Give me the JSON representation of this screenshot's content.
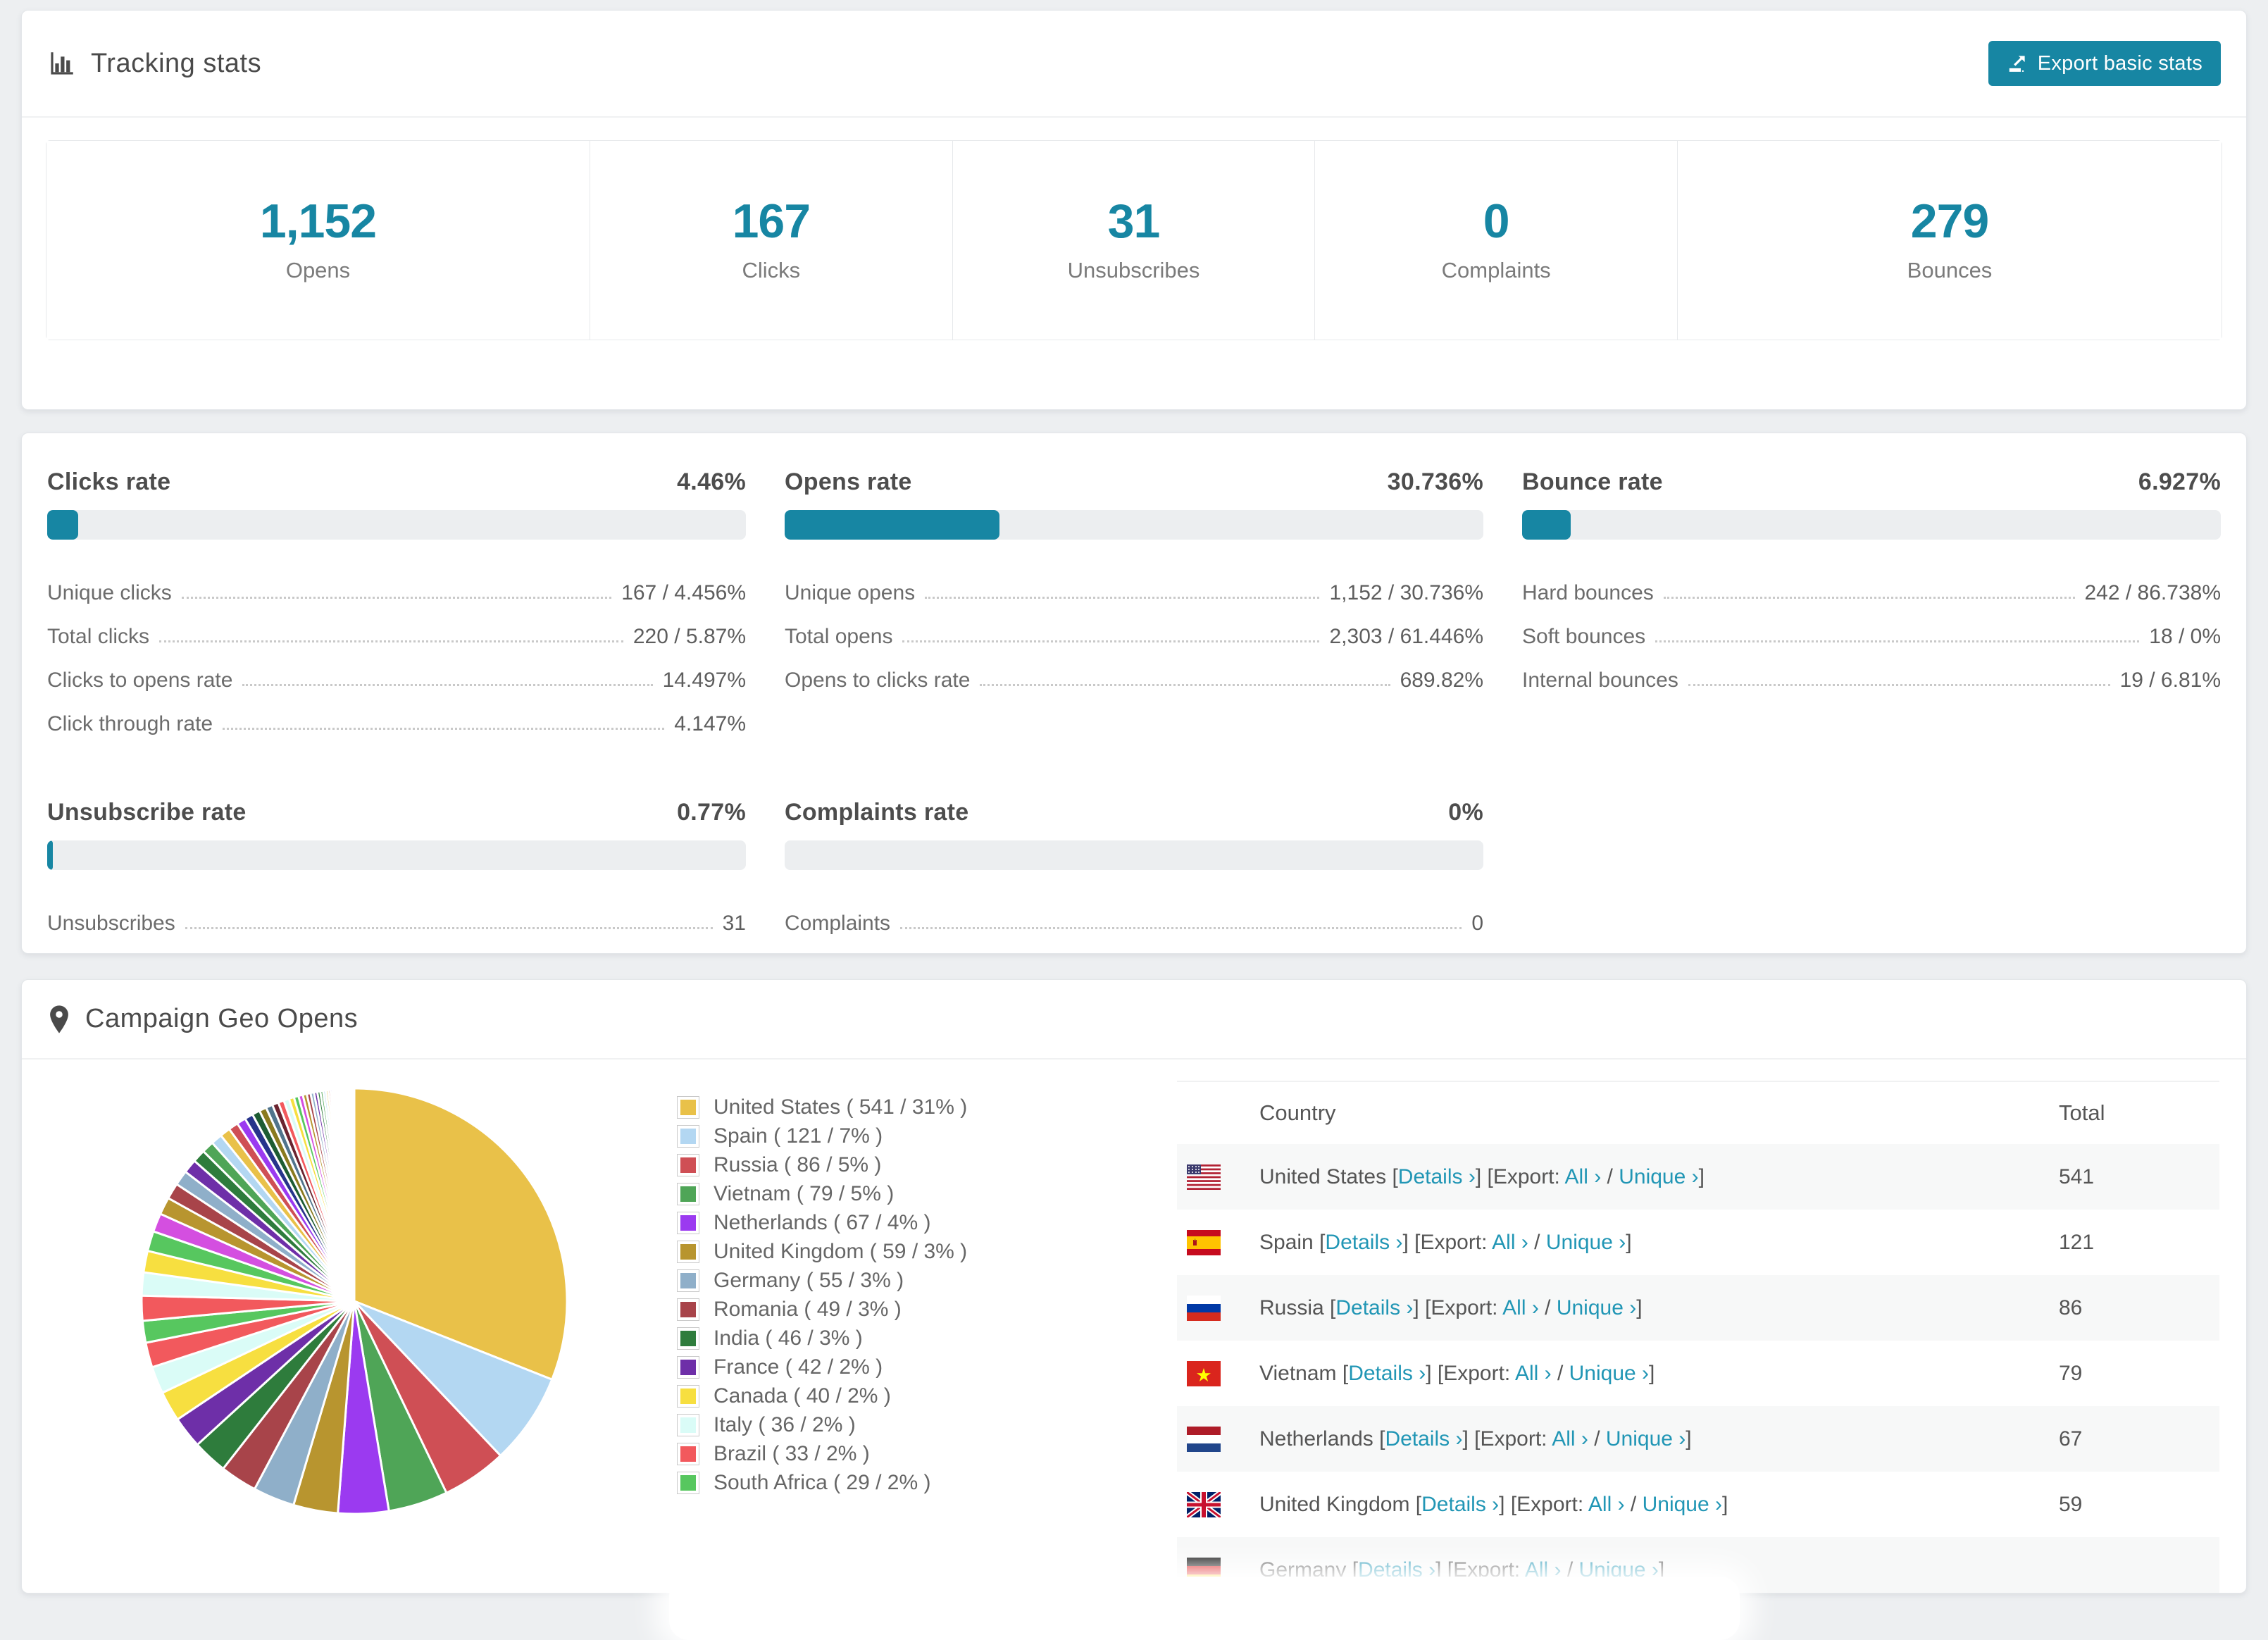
{
  "app": {
    "accent": "#1786a3",
    "link_color": "#2196b5"
  },
  "tracking_card": {
    "title": "Tracking stats",
    "export_button": "Export basic stats",
    "stats": [
      {
        "value": "1,152",
        "label": "Opens"
      },
      {
        "value": "167",
        "label": "Clicks"
      },
      {
        "value": "31",
        "label": "Unsubscribes"
      },
      {
        "value": "0",
        "label": "Complaints"
      },
      {
        "value": "279",
        "label": "Bounces"
      }
    ]
  },
  "rates_card": {
    "panels": [
      {
        "title": "Clicks rate",
        "value": "4.46%",
        "percent": 4.46,
        "rows": [
          {
            "label": "Unique clicks",
            "value": "167 / 4.456%"
          },
          {
            "label": "Total clicks",
            "value": "220 / 5.87%"
          },
          {
            "label": "Clicks to opens rate",
            "value": "14.497%"
          },
          {
            "label": "Click through rate",
            "value": "4.147%"
          }
        ]
      },
      {
        "title": "Opens rate",
        "value": "30.736%",
        "percent": 30.736,
        "rows": [
          {
            "label": "Unique opens",
            "value": "1,152 / 30.736%"
          },
          {
            "label": "Total opens",
            "value": "2,303 / 61.446%"
          },
          {
            "label": "Opens to clicks rate",
            "value": "689.82%"
          }
        ]
      },
      {
        "title": "Bounce rate",
        "value": "6.927%",
        "percent": 6.927,
        "rows": [
          {
            "label": "Hard bounces",
            "value": "242 / 86.738%"
          },
          {
            "label": "Soft bounces",
            "value": "18 / 0%"
          },
          {
            "label": "Internal bounces",
            "value": "19 / 6.81%"
          }
        ]
      },
      {
        "title": "Unsubscribe rate",
        "value": "0.77%",
        "percent": 0.77,
        "rows": [
          {
            "label": "Unsubscribes",
            "value": "31"
          }
        ]
      },
      {
        "title": "Complaints rate",
        "value": "0%",
        "percent": 0,
        "rows": [
          {
            "label": "Complaints",
            "value": "0"
          }
        ]
      }
    ]
  },
  "geo_card": {
    "title": "Campaign Geo Opens",
    "chart_data": {
      "type": "pie",
      "title": "Campaign Geo Opens",
      "legend_position": "right",
      "series": [
        {
          "label": "United States",
          "value": 541,
          "pct": 31,
          "color": "#e9c149",
          "flag": "us"
        },
        {
          "label": "Spain",
          "value": 121,
          "pct": 7,
          "color": "#b3d7f2",
          "flag": "es"
        },
        {
          "label": "Russia",
          "value": 86,
          "pct": 5,
          "color": "#cf4f55",
          "flag": "ru"
        },
        {
          "label": "Vietnam",
          "value": 79,
          "pct": 5,
          "color": "#4fa557",
          "flag": "vn"
        },
        {
          "label": "Netherlands",
          "value": 67,
          "pct": 4,
          "color": "#9b3af0",
          "flag": "nl"
        },
        {
          "label": "United Kingdom",
          "value": 59,
          "pct": 3,
          "color": "#b8952f",
          "flag": "gb"
        },
        {
          "label": "Germany",
          "value": 55,
          "pct": 3,
          "color": "#8fafc9",
          "flag": "de"
        },
        {
          "label": "Romania",
          "value": 49,
          "pct": 3,
          "color": "#a8444a",
          "flag": "ro"
        },
        {
          "label": "India",
          "value": 46,
          "pct": 3,
          "color": "#2e7c3c",
          "flag": "in"
        },
        {
          "label": "France",
          "value": 42,
          "pct": 2,
          "color": "#6e2fa8",
          "flag": "fr"
        },
        {
          "label": "Canada",
          "value": 40,
          "pct": 2,
          "color": "#f7df40",
          "flag": "ca"
        },
        {
          "label": "Italy",
          "value": 36,
          "pct": 2,
          "color": "#dafcf7",
          "flag": "it"
        },
        {
          "label": "Brazil",
          "value": 33,
          "pct": 2,
          "color": "#f2595d",
          "flag": "br"
        },
        {
          "label": "South Africa",
          "value": 29,
          "pct": 2,
          "color": "#57c75f",
          "flag": "za"
        }
      ],
      "others_pct_estimate": 26,
      "others_value_estimate": 462
    },
    "table": {
      "headers": [
        "Country",
        "Total"
      ],
      "details_label": "Details",
      "export_label": "Export:",
      "all_label": "All",
      "unique_label": "Unique",
      "chevron": "›",
      "rows": [
        {
          "country": "United States",
          "flag": "us",
          "total": "541"
        },
        {
          "country": "Spain",
          "flag": "es",
          "total": "121"
        },
        {
          "country": "Russia",
          "flag": "ru",
          "total": "86"
        },
        {
          "country": "Vietnam",
          "flag": "vn",
          "total": "79"
        },
        {
          "country": "Netherlands",
          "flag": "nl",
          "total": "67"
        },
        {
          "country": "United Kingdom",
          "flag": "gb",
          "total": "59"
        },
        {
          "country": "Germany",
          "flag": "de",
          "total": ""
        }
      ]
    }
  }
}
